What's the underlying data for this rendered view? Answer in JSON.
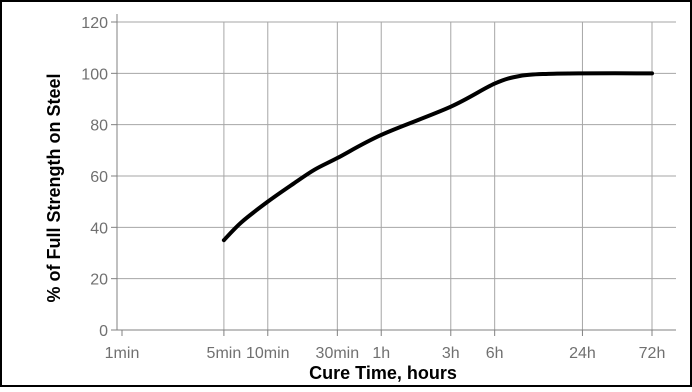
{
  "chart_data": {
    "type": "line",
    "title": "",
    "xlabel": "Cure Time, hours",
    "ylabel": "% of Full Strength on Steel",
    "x_scale": "log",
    "x_ticks": [
      {
        "label": "1min",
        "hours": 0.016667
      },
      {
        "label": "5min",
        "hours": 0.083333
      },
      {
        "label": "10min",
        "hours": 0.166667
      },
      {
        "label": "30min",
        "hours": 0.5
      },
      {
        "label": "1h",
        "hours": 1
      },
      {
        "label": "3h",
        "hours": 3
      },
      {
        "label": "6h",
        "hours": 6
      },
      {
        "label": "24h",
        "hours": 24
      },
      {
        "label": "72h",
        "hours": 72
      }
    ],
    "y_ticks": [
      0,
      20,
      40,
      60,
      80,
      100,
      120
    ],
    "ylim": [
      0,
      120
    ],
    "xlim_hours": [
      0.016667,
      72
    ],
    "grid": true,
    "series": [
      {
        "color": "#000000",
        "points": [
          {
            "hours": 0.083333,
            "value": 35
          },
          {
            "hours": 0.11,
            "value": 42
          },
          {
            "hours": 0.166667,
            "value": 50
          },
          {
            "hours": 0.25,
            "value": 57
          },
          {
            "hours": 0.35,
            "value": 62.5
          },
          {
            "hours": 0.5,
            "value": 67
          },
          {
            "hours": 1,
            "value": 76
          },
          {
            "hours": 3,
            "value": 87
          },
          {
            "hours": 6,
            "value": 96
          },
          {
            "hours": 9,
            "value": 99
          },
          {
            "hours": 14,
            "value": 99.8
          },
          {
            "hours": 24,
            "value": 100
          },
          {
            "hours": 72,
            "value": 100
          }
        ]
      }
    ]
  }
}
